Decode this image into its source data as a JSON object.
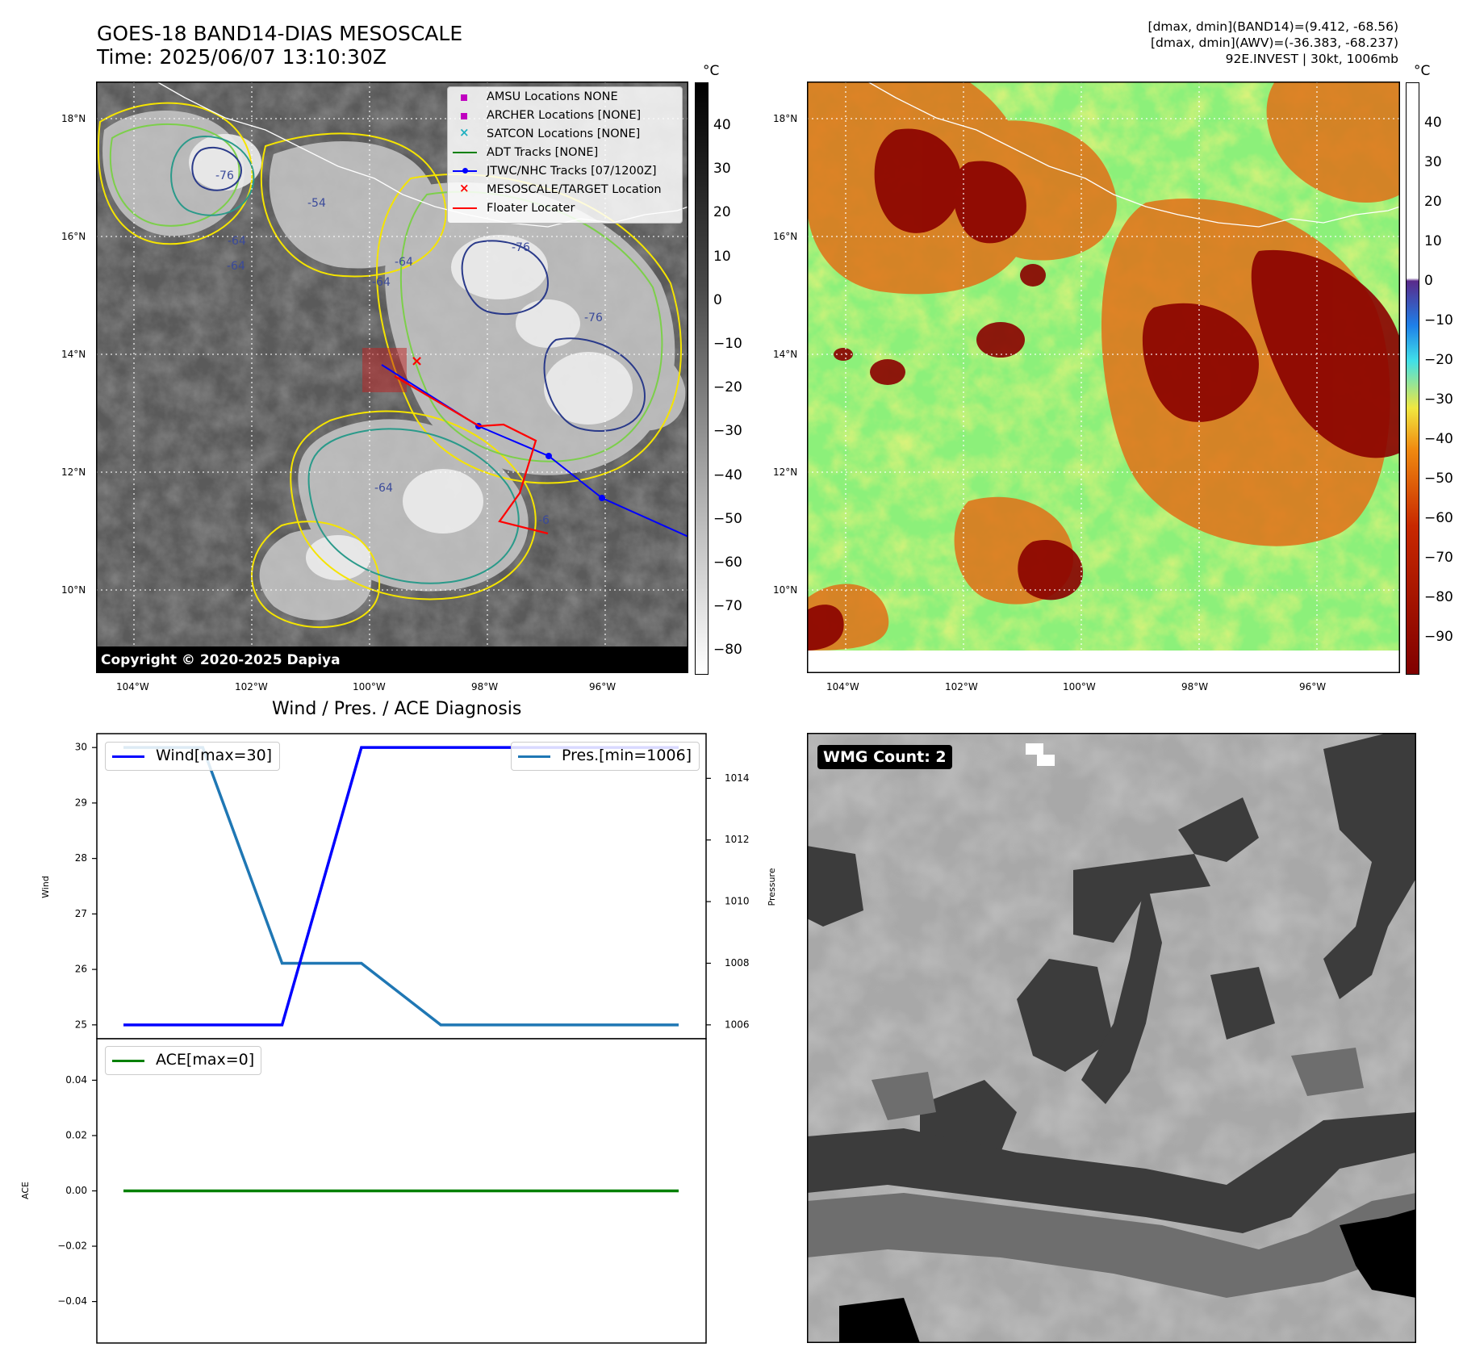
{
  "header": {
    "title_line1": "GOES-18 BAND14-DIAS MESOSCALE",
    "title_line2": "Time: 2025/06/07 13:10:30Z",
    "info_line1": "[dmax, dmin](BAND14)=(9.412, -68.56)",
    "info_line2": "[dmax, dmin](AWV)=(-36.383, -68.237)",
    "info_line3": "92E.INVEST | 30kt, 1006mb"
  },
  "map_left": {
    "lat_ticks": [
      "18°N",
      "16°N",
      "14°N",
      "12°N",
      "10°N"
    ],
    "lon_ticks": [
      "104°W",
      "102°W",
      "100°W",
      "98°W",
      "96°W"
    ],
    "legend": [
      {
        "label": "AMSU Locations NONE",
        "marker": "square",
        "color": "#c000c0"
      },
      {
        "label": "ARCHER Locations [NONE]",
        "marker": "square",
        "color": "#c000c0"
      },
      {
        "label": "SATCON Locations [NONE]",
        "marker": "x",
        "color": "#20b0c0"
      },
      {
        "label": "ADT Tracks [NONE]",
        "marker": "line",
        "color": "#008000"
      },
      {
        "label": "JTWC/NHC Tracks [07/1200Z]",
        "marker": "line-dot",
        "color": "#0000ff"
      },
      {
        "label": "MESOSCALE/TARGET Location",
        "marker": "x",
        "color": "#ff0000"
      },
      {
        "label": "Floater Locater",
        "marker": "line",
        "color": "#ff0000"
      }
    ],
    "contour_labels": [
      "-76",
      "-64",
      "-54",
      "-64",
      "-76",
      "-64",
      "-76",
      "-64",
      "-64",
      "-6"
    ],
    "copyright": "Copyright © 2020-2025 Dapiya",
    "colorbar_unit": "°C",
    "colorbar_ticks": [
      "40",
      "30",
      "20",
      "10",
      "0",
      "−10",
      "−20",
      "−30",
      "−40",
      "−50",
      "−60",
      "−70",
      "−80"
    ]
  },
  "map_right": {
    "lat_ticks": [
      "18°N",
      "16°N",
      "14°N",
      "12°N",
      "10°N"
    ],
    "lon_ticks": [
      "104°W",
      "102°W",
      "100°W",
      "98°W",
      "96°W"
    ],
    "colorbar_unit": "°C",
    "colorbar_ticks": [
      "40",
      "30",
      "20",
      "10",
      "0",
      "−10",
      "−20",
      "−30",
      "−40",
      "−50",
      "−60",
      "−70",
      "−80",
      "−90"
    ]
  },
  "diagnosis_title": "Wind / Pres. / ACE Diagnosis",
  "chart_data": [
    {
      "type": "line",
      "x": [
        0,
        1,
        2,
        3,
        4,
        5,
        6,
        7
      ],
      "series": [
        {
          "name": "Wind[max=30]",
          "axis": "left",
          "color": "#0000ff",
          "values": [
            25,
            25,
            25,
            30,
            30,
            30,
            30,
            30
          ]
        },
        {
          "name": "Pres.[min=1006]",
          "axis": "right",
          "color": "#1f77b4",
          "values": [
            1015,
            1015,
            1008,
            1008,
            1006,
            1006,
            1006,
            1006
          ]
        }
      ],
      "ylabel_left": "Wind",
      "ylabel_right": "Pressure",
      "ylim_left": [
        24.75,
        30.25
      ],
      "ylim_right": [
        1005.55,
        1015.45
      ],
      "yticks_left": [
        "30",
        "29",
        "28",
        "27",
        "26",
        "25"
      ],
      "yticks_right": [
        "1014",
        "1012",
        "1010",
        "1008",
        "1006"
      ],
      "legend_left": "top-left",
      "legend_right": "top-right"
    },
    {
      "type": "line",
      "x": [
        0,
        1,
        2,
        3,
        4,
        5,
        6,
        7
      ],
      "series": [
        {
          "name": "ACE[max=0]",
          "color": "#008000",
          "values": [
            0,
            0,
            0,
            0,
            0,
            0,
            0,
            0
          ]
        }
      ],
      "ylabel": "ACE",
      "ylim": [
        -0.055,
        0.055
      ],
      "yticks": [
        "0.04",
        "0.02",
        "0.00",
        "−0.02",
        "−0.04"
      ],
      "legend": "top-left"
    }
  ],
  "wmg": {
    "label": "WMG Count: 2"
  }
}
